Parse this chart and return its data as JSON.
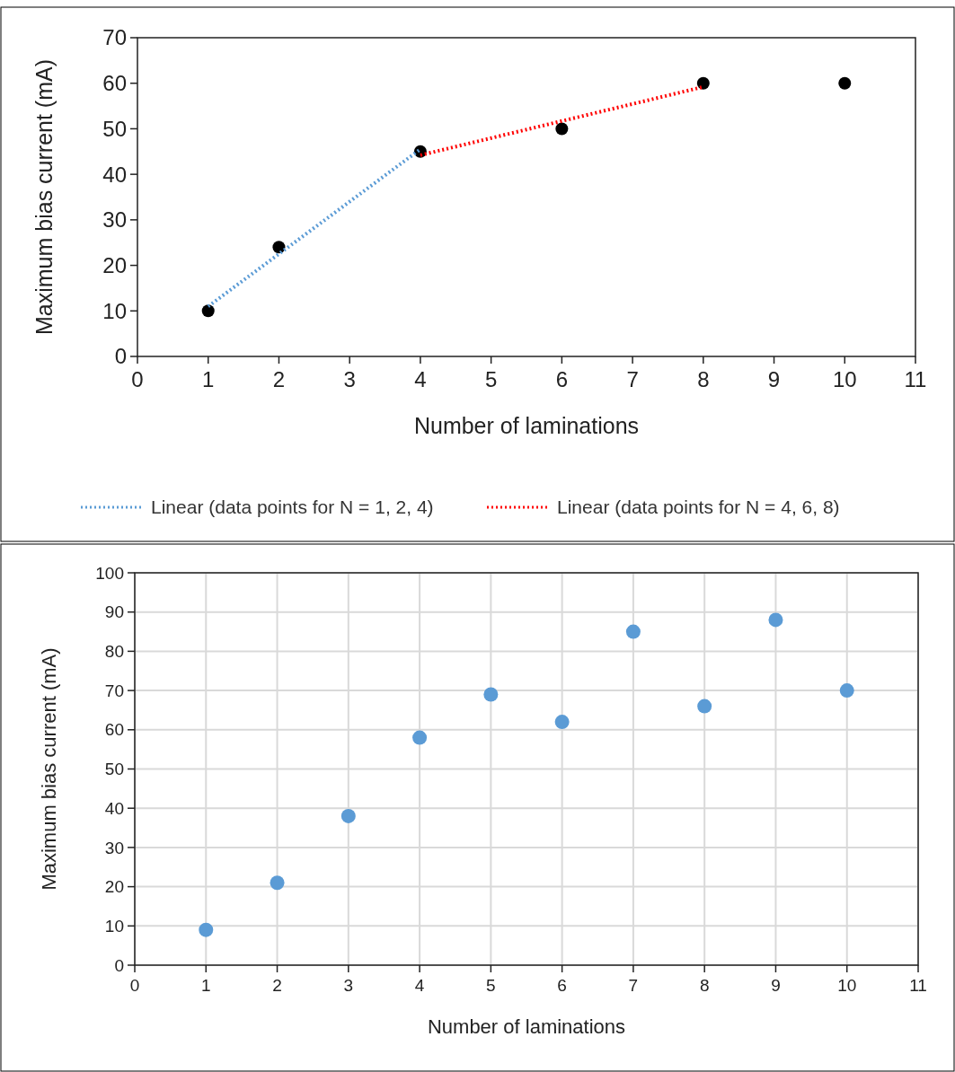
{
  "chart_data": [
    {
      "type": "scatter",
      "xlabel": "Number of laminations",
      "ylabel": "Maximum bias current  (mA)",
      "xlim": [
        0,
        11
      ],
      "xticks": [
        0,
        1,
        2,
        3,
        4,
        5,
        6,
        7,
        8,
        9,
        10,
        11
      ],
      "ylim": [
        0,
        70
      ],
      "yticks": [
        0,
        10,
        20,
        30,
        40,
        50,
        60,
        70
      ],
      "grid": false,
      "legend": "bottom",
      "series": [
        {
          "color": "#000000",
          "marker": "circle",
          "x": [
            1,
            2,
            4,
            6,
            8,
            10
          ],
          "values": [
            10,
            24,
            45,
            50,
            60,
            60
          ]
        },
        {
          "type": "line",
          "name": "Linear (data points for N = 1, 2, 4)",
          "color": "#5b9bd5",
          "line_style": "dotted",
          "marker": "none",
          "x": [
            1,
            4
          ],
          "values": [
            11,
            45.5
          ]
        },
        {
          "type": "line",
          "name": "Linear (data points for N = 4, 6, 8)",
          "color": "#ff0000",
          "line_style": "dotted",
          "marker": "none",
          "x": [
            4,
            8
          ],
          "values": [
            44.2,
            59.2
          ]
        }
      ]
    },
    {
      "type": "scatter",
      "xlabel": "Number of laminations",
      "ylabel": "Maximum bias current (mA)",
      "xlim": [
        0,
        11
      ],
      "xticks": [
        0,
        1,
        2,
        3,
        4,
        5,
        6,
        7,
        8,
        9,
        10,
        11
      ],
      "ylim": [
        0,
        100
      ],
      "yticks": [
        0,
        10,
        20,
        30,
        40,
        50,
        60,
        70,
        80,
        90,
        100
      ],
      "grid": true,
      "legend": false,
      "series": [
        {
          "color": "#5b9bd5",
          "marker": "circle",
          "x": [
            1,
            2,
            3,
            4,
            5,
            6,
            7,
            8,
            9,
            10
          ],
          "values": [
            9,
            21,
            38,
            58,
            69,
            62,
            85,
            66,
            88,
            70
          ]
        }
      ]
    }
  ]
}
